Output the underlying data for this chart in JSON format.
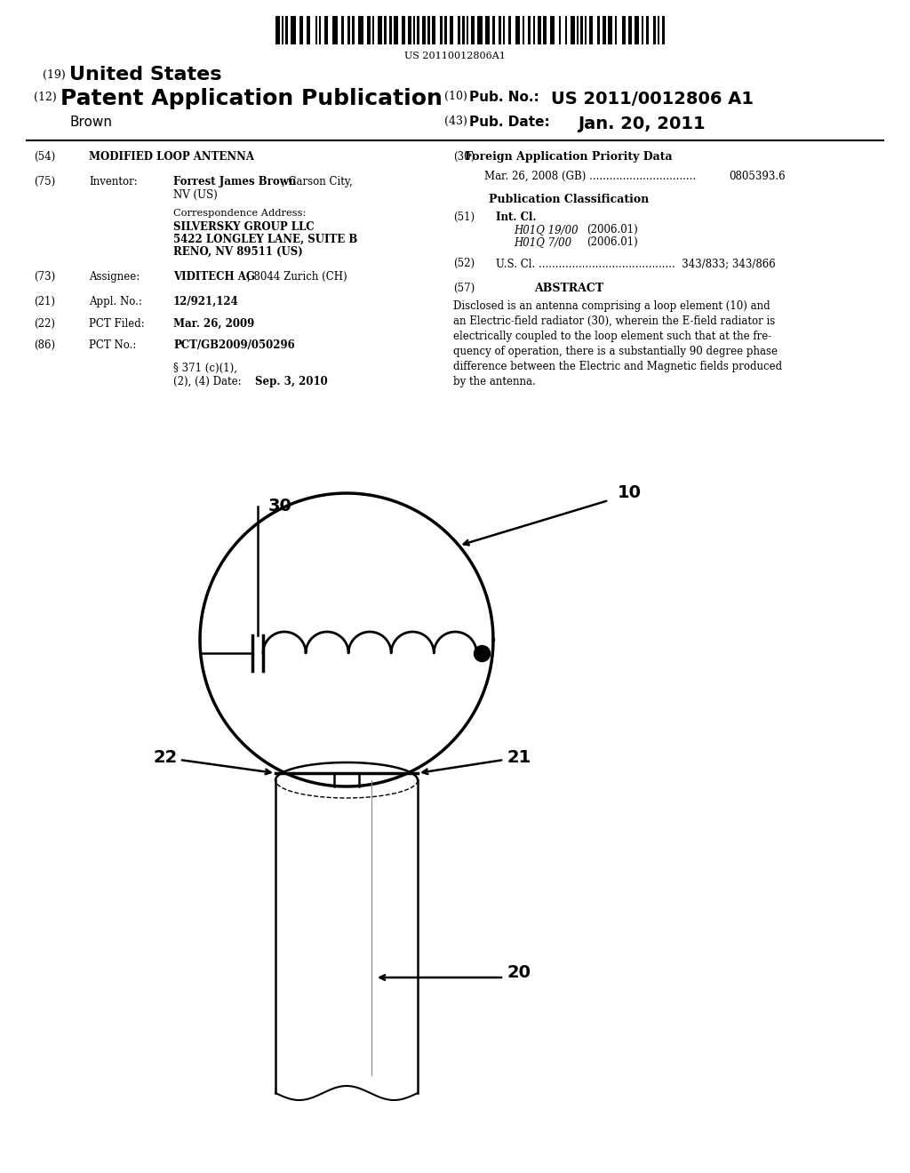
{
  "background_color": "#ffffff",
  "barcode_text": "US 20110012806A1",
  "header_19": "United States",
  "header_12": "Patent Application Publication",
  "header_10_label": "Pub. No.:",
  "header_10_value": "US 2011/0012806 A1",
  "header_43_label": "Pub. Date:",
  "header_43_value": "Jan. 20, 2011",
  "inventor_name": "Brown",
  "field54_value": "MODIFIED LOOP ANTENNA",
  "field75_name_bold": "Forrest James Brown",
  "field75_name_rest": ", Carson City,",
  "field75_city": "NV (US)",
  "field73_bold": "VIDITECH AG",
  "field73_rest": ", 8044 Zurich (CH)",
  "field21_value": "12/921,124",
  "field22_value": "Mar. 26, 2009",
  "field86_value": "PCT/GB2009/050296",
  "field86b_date": "Sep. 3, 2010",
  "field30_header": "Foreign Application Priority Data",
  "field30_entry": "Mar. 26, 2008    (GB) ................................  0805393.6",
  "pub_class_header": "Publication Classification",
  "field51_h01q19": "H01Q 19/00",
  "field51_h01q7": "H01Q 7/00",
  "field51_date1": "(2006.01)",
  "field51_date2": "(2006.01)",
  "field57_header": "ABSTRACT",
  "abstract_text": "Disclosed is an antenna comprising a loop element (10) and\nan Electric-field radiator (30), wherein the E-field radiator is\nelectrically coupled to the loop element such that at the fre-\nquency of operation, there is a substantially 90 degree phase\ndifference between the Electric and Magnetic fields produced\nby the antenna.",
  "diagram_label_10": "10",
  "diagram_label_20": "20",
  "diagram_label_21": "21",
  "diagram_label_22": "22",
  "diagram_label_30": "30"
}
